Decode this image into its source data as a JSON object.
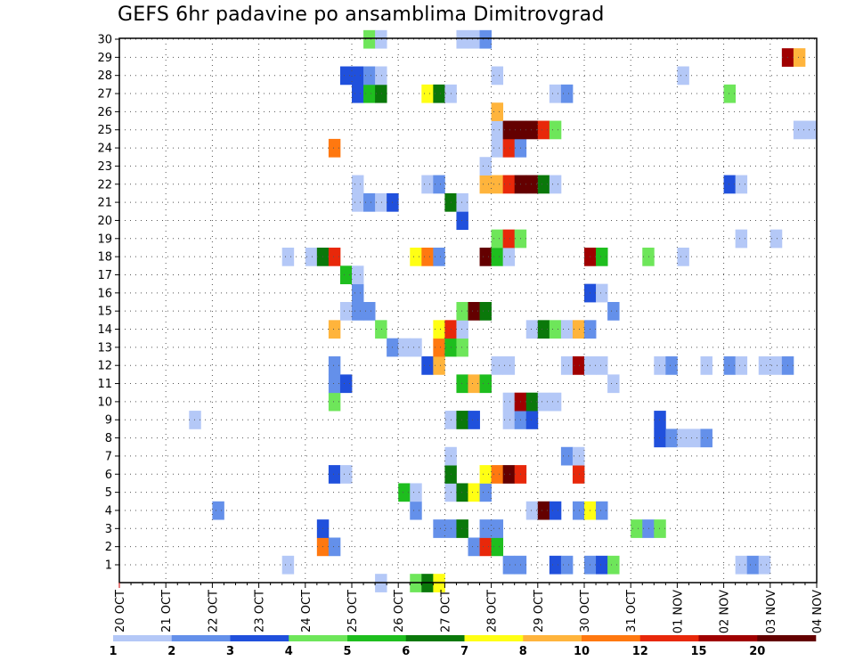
{
  "chart_data": {
    "type": "heatmap",
    "title": "GEFS 6hr padavine po ansamblima Dimitrovgrad",
    "x_ticks": [
      "20 OCT",
      "21 OCT",
      "22 OCT",
      "23 OCT",
      "24 OCT",
      "25 OCT",
      "26 OCT",
      "27 OCT",
      "28 OCT",
      "29 OCT",
      "30 OCT",
      "31 OCT",
      "01 NOV",
      "02 NOV",
      "03 NOV",
      "04 NOV"
    ],
    "y_ticks": [
      "1",
      "2",
      "3",
      "4",
      "5",
      "6",
      "7",
      "8",
      "9",
      "10",
      "11",
      "12",
      "13",
      "14",
      "15",
      "16",
      "17",
      "18",
      "19",
      "20",
      "21",
      "22",
      "23",
      "24",
      "25",
      "26",
      "27",
      "28",
      "29",
      "30"
    ],
    "time_steps_per_day": 4,
    "grid": true,
    "colorbar": {
      "labels": [
        "1",
        "2",
        "3",
        "4",
        "5",
        "6",
        "7",
        "8",
        "10",
        "12",
        "15",
        "20"
      ],
      "colors": [
        "#b4c8f7",
        "#6490ea",
        "#2050dc",
        "#6ee65a",
        "#1ebe1e",
        "#0a780a",
        "#ffff14",
        "#ffb43c",
        "#ff7810",
        "#e8280a",
        "#a00000",
        "#640000"
      ]
    },
    "cells": [
      [
        0,
        22,
        0
      ],
      [
        0,
        25,
        3
      ],
      [
        0,
        26,
        5
      ],
      [
        0,
        27,
        6
      ],
      [
        1,
        14,
        0
      ],
      [
        1,
        33,
        1
      ],
      [
        1,
        34,
        1
      ],
      [
        1,
        37,
        2
      ],
      [
        1,
        38,
        1
      ],
      [
        1,
        40,
        1
      ],
      [
        1,
        41,
        2
      ],
      [
        1,
        42,
        3
      ],
      [
        1,
        53,
        0
      ],
      [
        1,
        54,
        1
      ],
      [
        1,
        55,
        0
      ],
      [
        2,
        30,
        1
      ],
      [
        2,
        31,
        9
      ],
      [
        2,
        32,
        4
      ],
      [
        2,
        17,
        8
      ],
      [
        2,
        18,
        1
      ],
      [
        3,
        17,
        2
      ],
      [
        3,
        27,
        1
      ],
      [
        3,
        28,
        1
      ],
      [
        3,
        29,
        5
      ],
      [
        3,
        31,
        1
      ],
      [
        3,
        32,
        1
      ],
      [
        3,
        44,
        3
      ],
      [
        3,
        45,
        1
      ],
      [
        3,
        46,
        3
      ],
      [
        4,
        8,
        1
      ],
      [
        4,
        25,
        1
      ],
      [
        4,
        35,
        0
      ],
      [
        4,
        36,
        11
      ],
      [
        4,
        37,
        2
      ],
      [
        4,
        39,
        1
      ],
      [
        4,
        40,
        6
      ],
      [
        4,
        41,
        1
      ],
      [
        5,
        24,
        4
      ],
      [
        5,
        25,
        0
      ],
      [
        5,
        28,
        0
      ],
      [
        5,
        29,
        5
      ],
      [
        5,
        30,
        6
      ],
      [
        5,
        31,
        1
      ],
      [
        6,
        18,
        2
      ],
      [
        6,
        19,
        0
      ],
      [
        6,
        28,
        5
      ],
      [
        6,
        31,
        6
      ],
      [
        6,
        32,
        8
      ],
      [
        6,
        33,
        11
      ],
      [
        6,
        34,
        9
      ],
      [
        6,
        39,
        9
      ],
      [
        7,
        28,
        0
      ],
      [
        7,
        38,
        1
      ],
      [
        7,
        39,
        0
      ],
      [
        8,
        46,
        2
      ],
      [
        8,
        47,
        1
      ],
      [
        8,
        48,
        0
      ],
      [
        8,
        49,
        0
      ],
      [
        8,
        50,
        1
      ],
      [
        9,
        6,
        0
      ],
      [
        9,
        28,
        0
      ],
      [
        9,
        29,
        5
      ],
      [
        9,
        30,
        2
      ],
      [
        9,
        33,
        0
      ],
      [
        9,
        34,
        1
      ],
      [
        9,
        35,
        2
      ],
      [
        9,
        46,
        2
      ],
      [
        10,
        18,
        3
      ],
      [
        10,
        33,
        0
      ],
      [
        10,
        34,
        10
      ],
      [
        10,
        35,
        5
      ],
      [
        10,
        36,
        0
      ],
      [
        10,
        37,
        0
      ],
      [
        11,
        18,
        1
      ],
      [
        11,
        19,
        2
      ],
      [
        11,
        29,
        4
      ],
      [
        11,
        30,
        7
      ],
      [
        11,
        31,
        4
      ],
      [
        11,
        42,
        0
      ],
      [
        12,
        18,
        1
      ],
      [
        12,
        26,
        2
      ],
      [
        12,
        27,
        7
      ],
      [
        12,
        32,
        0
      ],
      [
        12,
        33,
        0
      ],
      [
        12,
        38,
        0
      ],
      [
        12,
        39,
        10
      ],
      [
        12,
        40,
        0
      ],
      [
        12,
        41,
        0
      ],
      [
        12,
        46,
        0
      ],
      [
        12,
        47,
        1
      ],
      [
        12,
        50,
        0
      ],
      [
        12,
        52,
        1
      ],
      [
        12,
        53,
        0
      ],
      [
        12,
        55,
        0
      ],
      [
        12,
        56,
        0
      ],
      [
        12,
        57,
        1
      ],
      [
        13,
        23,
        1
      ],
      [
        13,
        24,
        0
      ],
      [
        13,
        25,
        0
      ],
      [
        13,
        27,
        8
      ],
      [
        13,
        28,
        4
      ],
      [
        13,
        29,
        3
      ],
      [
        14,
        18,
        7
      ],
      [
        14,
        22,
        3
      ],
      [
        14,
        27,
        6
      ],
      [
        14,
        28,
        9
      ],
      [
        14,
        29,
        0
      ],
      [
        14,
        35,
        0
      ],
      [
        14,
        36,
        5
      ],
      [
        14,
        37,
        3
      ],
      [
        14,
        38,
        0
      ],
      [
        14,
        39,
        7
      ],
      [
        14,
        40,
        1
      ],
      [
        15,
        19,
        0
      ],
      [
        15,
        20,
        1
      ],
      [
        15,
        21,
        1
      ],
      [
        15,
        29,
        3
      ],
      [
        15,
        30,
        11
      ],
      [
        15,
        31,
        5
      ],
      [
        15,
        42,
        1
      ],
      [
        16,
        20,
        1
      ],
      [
        16,
        40,
        2
      ],
      [
        16,
        41,
        0
      ],
      [
        17,
        19,
        4
      ],
      [
        17,
        20,
        0
      ],
      [
        18,
        14,
        0
      ],
      [
        18,
        16,
        0
      ],
      [
        18,
        17,
        5
      ],
      [
        18,
        18,
        9
      ],
      [
        18,
        25,
        6
      ],
      [
        18,
        26,
        8
      ],
      [
        18,
        27,
        1
      ],
      [
        18,
        31,
        11
      ],
      [
        18,
        32,
        4
      ],
      [
        18,
        33,
        0
      ],
      [
        18,
        40,
        10
      ],
      [
        18,
        41,
        4
      ],
      [
        18,
        45,
        3
      ],
      [
        18,
        48,
        0
      ],
      [
        19,
        32,
        3
      ],
      [
        19,
        33,
        9
      ],
      [
        19,
        34,
        3
      ],
      [
        19,
        53,
        0
      ],
      [
        19,
        56,
        0
      ],
      [
        20,
        29,
        2
      ],
      [
        21,
        20,
        0
      ],
      [
        21,
        21,
        1
      ],
      [
        21,
        22,
        0
      ],
      [
        21,
        23,
        2
      ],
      [
        21,
        28,
        5
      ],
      [
        21,
        29,
        0
      ],
      [
        22,
        20,
        0
      ],
      [
        22,
        26,
        0
      ],
      [
        22,
        27,
        1
      ],
      [
        22,
        31,
        7
      ],
      [
        22,
        32,
        7
      ],
      [
        22,
        33,
        9
      ],
      [
        22,
        34,
        11
      ],
      [
        22,
        35,
        11
      ],
      [
        22,
        36,
        5
      ],
      [
        22,
        37,
        0
      ],
      [
        22,
        52,
        2
      ],
      [
        22,
        53,
        0
      ],
      [
        23,
        31,
        0
      ],
      [
        24,
        18,
        8
      ],
      [
        24,
        32,
        0
      ],
      [
        24,
        33,
        9
      ],
      [
        24,
        34,
        1
      ],
      [
        25,
        32,
        0
      ],
      [
        25,
        33,
        11
      ],
      [
        25,
        34,
        11
      ],
      [
        25,
        35,
        11
      ],
      [
        25,
        36,
        9
      ],
      [
        25,
        37,
        3
      ],
      [
        25,
        58,
        0
      ],
      [
        25,
        59,
        0
      ],
      [
        26,
        32,
        7
      ],
      [
        27,
        20,
        2
      ],
      [
        27,
        21,
        4
      ],
      [
        27,
        22,
        5
      ],
      [
        27,
        26,
        6
      ],
      [
        27,
        27,
        5
      ],
      [
        27,
        28,
        0
      ],
      [
        27,
        37,
        0
      ],
      [
        27,
        38,
        1
      ],
      [
        27,
        52,
        3
      ],
      [
        28,
        19,
        2
      ],
      [
        28,
        20,
        2
      ],
      [
        28,
        21,
        1
      ],
      [
        28,
        22,
        0
      ],
      [
        28,
        32,
        0
      ],
      [
        28,
        48,
        0
      ],
      [
        29,
        57,
        10
      ],
      [
        29,
        58,
        7
      ],
      [
        30,
        21,
        3
      ],
      [
        30,
        22,
        0
      ],
      [
        30,
        29,
        0
      ],
      [
        30,
        30,
        0
      ],
      [
        30,
        31,
        1
      ]
    ]
  }
}
